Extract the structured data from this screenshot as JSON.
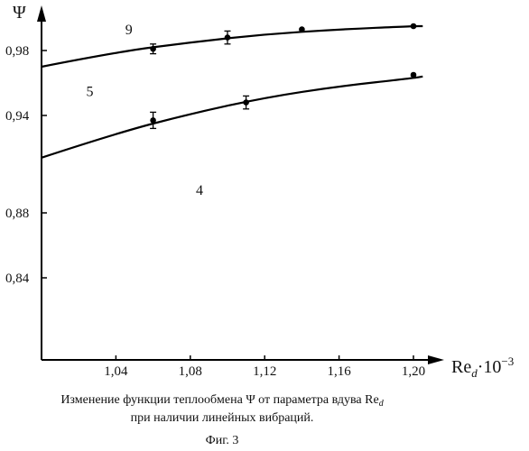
{
  "chart_data": {
    "type": "scatter",
    "ylabel": "Ψ",
    "xlabel": {
      "base": "Re",
      "sub": "d",
      "factor": "·10",
      "exp": "−3"
    },
    "xlim": [
      1.0,
      1.22
    ],
    "ylim": [
      0.8,
      1.0
    ],
    "x_ticks": [
      1.04,
      1.08,
      1.12,
      1.16,
      1.2
    ],
    "x_tick_labels": [
      "1,04",
      "1,08",
      "1,12",
      "1,16",
      "1,20"
    ],
    "y_ticks": [
      0.84,
      0.88,
      0.94,
      0.98
    ],
    "y_tick_labels": [
      "0,84",
      "0,88",
      "0,94",
      "0,98"
    ],
    "curve_labels": [
      {
        "text": "9",
        "x": 1.045,
        "y": 0.99
      },
      {
        "text": "5",
        "x": 1.024,
        "y": 0.952
      },
      {
        "text": "4",
        "x": 1.083,
        "y": 0.891
      }
    ],
    "series": [
      {
        "fit": {
          "x": [
            1.0,
            1.04,
            1.08,
            1.12,
            1.16,
            1.2,
            1.205
          ],
          "y": [
            0.97,
            0.979,
            0.985,
            0.99,
            0.993,
            0.995,
            0.995
          ]
        },
        "points": [
          {
            "x": 1.06,
            "y": 0.981,
            "err": 0.003
          },
          {
            "x": 1.1,
            "y": 0.988,
            "err": 0.004
          },
          {
            "x": 1.14,
            "y": 0.993,
            "err": 0
          },
          {
            "x": 1.2,
            "y": 0.995,
            "err": 0
          }
        ]
      },
      {
        "fit": {
          "x": [
            1.0,
            1.04,
            1.08,
            1.12,
            1.16,
            1.2,
            1.205
          ],
          "y": [
            0.914,
            0.929,
            0.941,
            0.951,
            0.958,
            0.963,
            0.964
          ]
        },
        "points": [
          {
            "x": 1.06,
            "y": 0.937,
            "err": 0.005
          },
          {
            "x": 1.11,
            "y": 0.948,
            "err": 0.004
          },
          {
            "x": 1.2,
            "y": 0.965,
            "err": 0
          }
        ]
      }
    ]
  },
  "caption": {
    "line1_pre": "Изменение функции теплообмена ",
    "line1_psi": "Ψ",
    "line1_mid": " от параметра вдува ",
    "line1_re": "Re",
    "line1_sub": "d",
    "line2": "при наличии линейных вибраций.",
    "figure": "Фиг. 3"
  }
}
